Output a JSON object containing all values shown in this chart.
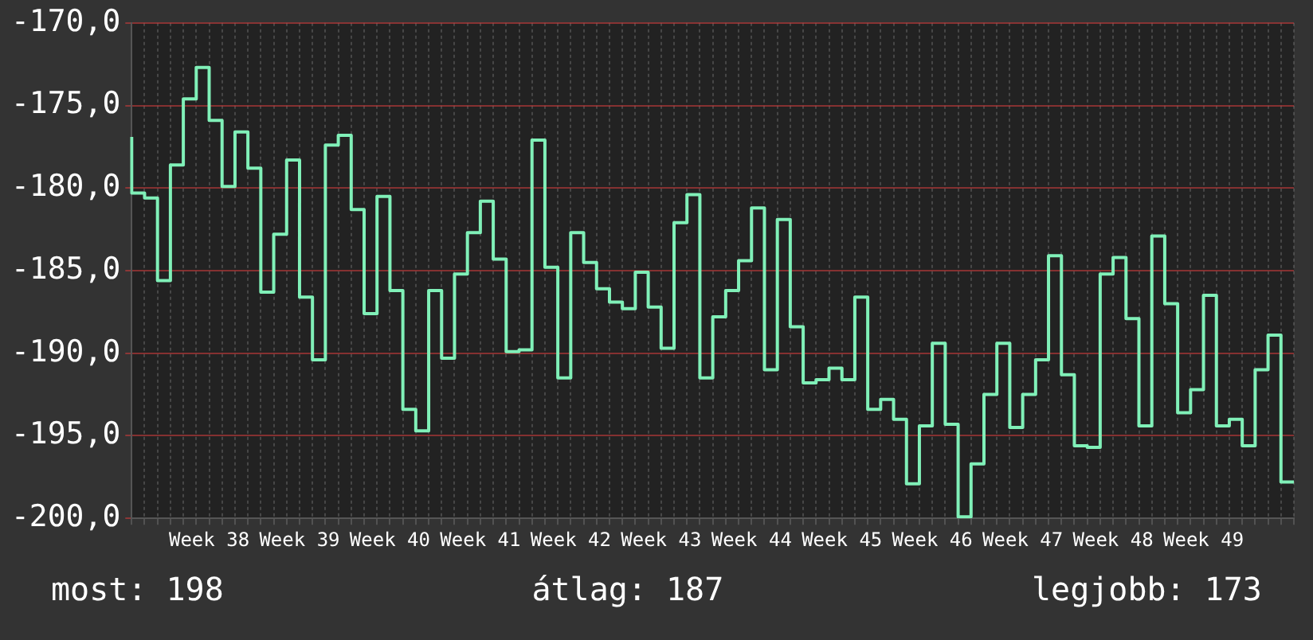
{
  "chart_data": {
    "type": "step",
    "categories": [
      null,
      null,
      null,
      null,
      null,
      null,
      "Week 38",
      null,
      null,
      null,
      null,
      null,
      null,
      "Week 39",
      null,
      null,
      null,
      null,
      null,
      null,
      "Week 40",
      null,
      null,
      null,
      null,
      null,
      null,
      "Week 41",
      null,
      null,
      null,
      null,
      null,
      null,
      "Week 42",
      null,
      null,
      null,
      null,
      null,
      null,
      "Week 43",
      null,
      null,
      null,
      null,
      null,
      null,
      "Week 44",
      null,
      null,
      null,
      null,
      null,
      null,
      "Week 45",
      null,
      null,
      null,
      null,
      null,
      null,
      "Week 46",
      null,
      null,
      null,
      null,
      null,
      null,
      "Week 47",
      null,
      null,
      null,
      null,
      null,
      null,
      "Week 48",
      null,
      null,
      null,
      null,
      null,
      null,
      "Week 49",
      null,
      null,
      null,
      null,
      null,
      null,
      null
    ],
    "series": [
      {
        "color": "#80f0b8",
        "values": [
          -176.9,
          -180.3,
          -180.6,
          -185.6,
          -178.6,
          -174.6,
          -172.7,
          -175.9,
          -179.9,
          -176.6,
          -178.8,
          -186.3,
          -182.8,
          -178.3,
          -186.6,
          -190.4,
          -177.4,
          -176.8,
          -181.3,
          -187.6,
          -180.5,
          -186.2,
          -193.4,
          -194.7,
          -186.2,
          -190.3,
          -185.2,
          -182.7,
          -180.8,
          -184.3,
          -189.9,
          -189.8,
          -177.1,
          -184.8,
          -191.5,
          -182.7,
          -184.5,
          -186.1,
          -186.9,
          -187.3,
          -185.1,
          -187.2,
          -189.7,
          -182.1,
          -180.4,
          -191.5,
          -187.8,
          -186.2,
          -184.4,
          -181.2,
          -191.0,
          -181.9,
          -188.4,
          -191.8,
          -191.6,
          -190.9,
          -191.6,
          -186.6,
          -193.4,
          -192.8,
          -194.0,
          -197.9,
          -194.4,
          -189.4,
          -194.3,
          -199.9,
          -196.7,
          -192.5,
          -189.4,
          -194.5,
          -192.5,
          -190.4,
          -184.1,
          -191.3,
          -195.6,
          -195.7,
          -185.2,
          -184.2,
          -187.9,
          -194.4,
          -182.9,
          -187.0,
          -193.6,
          -192.2,
          -186.5,
          -194.4,
          -194.0,
          -195.6,
          -191.0,
          -188.9,
          -197.8
        ]
      }
    ],
    "ylim": [
      -200,
      -170
    ],
    "yticks": [
      {
        "value": -200,
        "label": "-200,0"
      },
      {
        "value": -195,
        "label": "-195,0"
      },
      {
        "value": -190,
        "label": "-190,0"
      },
      {
        "value": -185,
        "label": "-185,0"
      },
      {
        "value": -180,
        "label": "-180,0"
      },
      {
        "value": -175,
        "label": "-175,0"
      },
      {
        "value": -170,
        "label": "-170,0"
      }
    ],
    "grid": true,
    "annotations": [
      "most: 198",
      "átlag: 187",
      "legjobb: 173"
    ]
  }
}
